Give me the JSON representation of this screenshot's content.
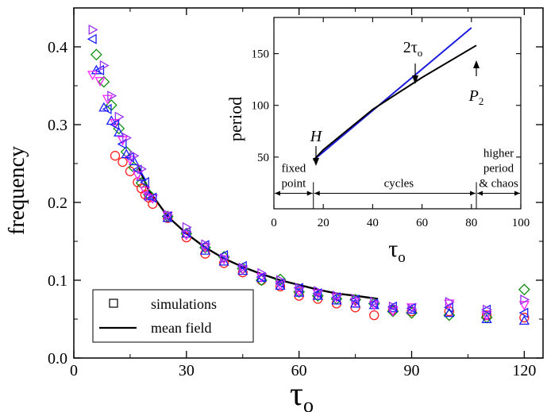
{
  "chart_data": [
    {
      "type": "scatter",
      "xlabel": "τo",
      "ylabel": "frequency",
      "xlim": [
        0,
        125
      ],
      "ylim": [
        0,
        0.45
      ],
      "xticks": [
        "0",
        "30",
        "60",
        "90",
        "120"
      ],
      "yticks": [
        "0.0",
        "0.1",
        "0.2",
        "0.3",
        "0.4"
      ],
      "legend": {
        "position": "bottom-left",
        "entries": [
          {
            "label": "simulations",
            "marker": "square"
          },
          {
            "label": "mean field",
            "marker": "line"
          }
        ]
      },
      "mean_field": {
        "x": [
          17,
          20,
          25,
          30,
          35,
          40,
          45,
          50,
          55,
          60,
          65,
          70,
          75,
          81
        ],
        "y": [
          0.248,
          0.215,
          0.182,
          0.16,
          0.142,
          0.128,
          0.117,
          0.108,
          0.1,
          0.094,
          0.088,
          0.083,
          0.08,
          0.076
        ]
      },
      "series": [
        {
          "marker": "circle",
          "color": "#ff2020",
          "x": [
            11,
            13,
            15,
            17,
            18,
            19,
            20,
            21,
            25,
            30,
            35,
            40,
            45,
            50,
            55,
            60,
            65,
            70,
            75,
            80,
            85,
            90,
            100,
            110,
            120
          ],
          "y": [
            0.26,
            0.252,
            0.24,
            0.226,
            0.218,
            0.21,
            0.206,
            0.198,
            0.18,
            0.155,
            0.134,
            0.122,
            0.11,
            0.1,
            0.092,
            0.08,
            0.076,
            0.07,
            0.065,
            0.055,
            0.062,
            0.06,
            0.06,
            0.055,
            0.052
          ]
        },
        {
          "marker": "diamond",
          "color": "#109010",
          "x": [
            6,
            8,
            10,
            12,
            14,
            16,
            18,
            20,
            25,
            30,
            35,
            40,
            45,
            50,
            55,
            60,
            65,
            70,
            75,
            80,
            85,
            90,
            100,
            110,
            120
          ],
          "y": [
            0.39,
            0.355,
            0.325,
            0.295,
            0.265,
            0.245,
            0.225,
            0.21,
            0.182,
            0.16,
            0.142,
            0.13,
            0.115,
            0.1,
            0.101,
            0.085,
            0.08,
            0.076,
            0.075,
            0.07,
            0.06,
            0.058,
            0.055,
            0.052,
            0.088
          ]
        },
        {
          "marker": "triangle-up",
          "color": "#1c1cff",
          "x": [
            6,
            8,
            10,
            12,
            14,
            16,
            18,
            20,
            25,
            30,
            35,
            40,
            45,
            50,
            55,
            60,
            65,
            70,
            75,
            80,
            85,
            90,
            100,
            110,
            120
          ],
          "y": [
            0.37,
            0.322,
            0.305,
            0.29,
            0.262,
            0.253,
            0.233,
            0.208,
            0.18,
            0.16,
            0.138,
            0.124,
            0.112,
            0.103,
            0.093,
            0.084,
            0.08,
            0.074,
            0.07,
            0.068,
            0.064,
            0.062,
            0.058,
            0.05,
            0.048
          ]
        },
        {
          "marker": "triangle-down",
          "color": "#ff22ff",
          "x": [
            5,
            7,
            9,
            11,
            13,
            15,
            17,
            19,
            21,
            25,
            30,
            35,
            40,
            45,
            50,
            55,
            60,
            65,
            70,
            75,
            80,
            85,
            90,
            100,
            110,
            120
          ],
          "y": [
            0.364,
            0.356,
            0.333,
            0.302,
            0.28,
            0.255,
            0.235,
            0.215,
            0.205,
            0.183,
            0.158,
            0.142,
            0.127,
            0.114,
            0.104,
            0.094,
            0.086,
            0.083,
            0.078,
            0.072,
            0.068,
            0.06,
            0.065,
            0.07,
            0.055,
            0.068
          ]
        },
        {
          "marker": "triangle-left",
          "color": "#1c1cff",
          "x": [
            5,
            7,
            9,
            11,
            13,
            15,
            17,
            19,
            21,
            25,
            30,
            35,
            40,
            45,
            50,
            55,
            60,
            65,
            70,
            75,
            80,
            85,
            90,
            100,
            110,
            120
          ],
          "y": [
            0.41,
            0.37,
            0.32,
            0.3,
            0.275,
            0.258,
            0.242,
            0.226,
            0.206,
            0.182,
            0.162,
            0.145,
            0.132,
            0.118,
            0.104,
            0.096,
            0.09,
            0.083,
            0.078,
            0.075,
            0.07,
            0.066,
            0.064,
            0.065,
            0.062,
            0.058
          ]
        },
        {
          "marker": "triangle-right",
          "color": "#9a2ff0",
          "x": [
            5,
            8,
            10,
            12,
            14,
            16,
            18,
            20,
            25,
            30,
            35,
            40,
            45,
            50,
            55,
            60,
            65,
            70,
            75,
            80,
            85,
            90,
            100,
            110,
            120
          ],
          "y": [
            0.422,
            0.376,
            0.337,
            0.31,
            0.283,
            0.26,
            0.243,
            0.208,
            0.184,
            0.168,
            0.146,
            0.128,
            0.116,
            0.109,
            0.1,
            0.09,
            0.086,
            0.08,
            0.076,
            0.072,
            0.066,
            0.063,
            0.072,
            0.062,
            0.075
          ]
        }
      ]
    },
    {
      "type": "line",
      "xlabel": "τo",
      "ylabel": "period",
      "xlim": [
        0,
        100
      ],
      "ylim": [
        0,
        185
      ],
      "xticks": [
        "0",
        "20",
        "40",
        "60",
        "80",
        "100"
      ],
      "yticks": [
        "50",
        "100",
        "150"
      ],
      "series": [
        {
          "color": "#1c1cdd",
          "x": [
            16,
            80
          ],
          "y": [
            47,
            175
          ]
        },
        {
          "color": "#000000",
          "x": [
            16,
            20,
            40,
            60,
            82
          ],
          "y": [
            47,
            57,
            96,
            127,
            158
          ]
        }
      ],
      "annotations": [
        {
          "text": "H",
          "x": 16,
          "y": 47
        },
        {
          "text": "2τo",
          "x": 56,
          "y": 125
        },
        {
          "text": "P2",
          "x": 82,
          "y": 158
        }
      ],
      "regions": [
        {
          "lines": [
            "fixed",
            "point"
          ],
          "from": 0,
          "to": 16
        },
        {
          "lines": [
            "cycles"
          ],
          "from": 16,
          "to": 82
        },
        {
          "lines": [
            "higher",
            "period",
            "& chaos"
          ],
          "from": 82,
          "to": 100
        }
      ]
    }
  ]
}
